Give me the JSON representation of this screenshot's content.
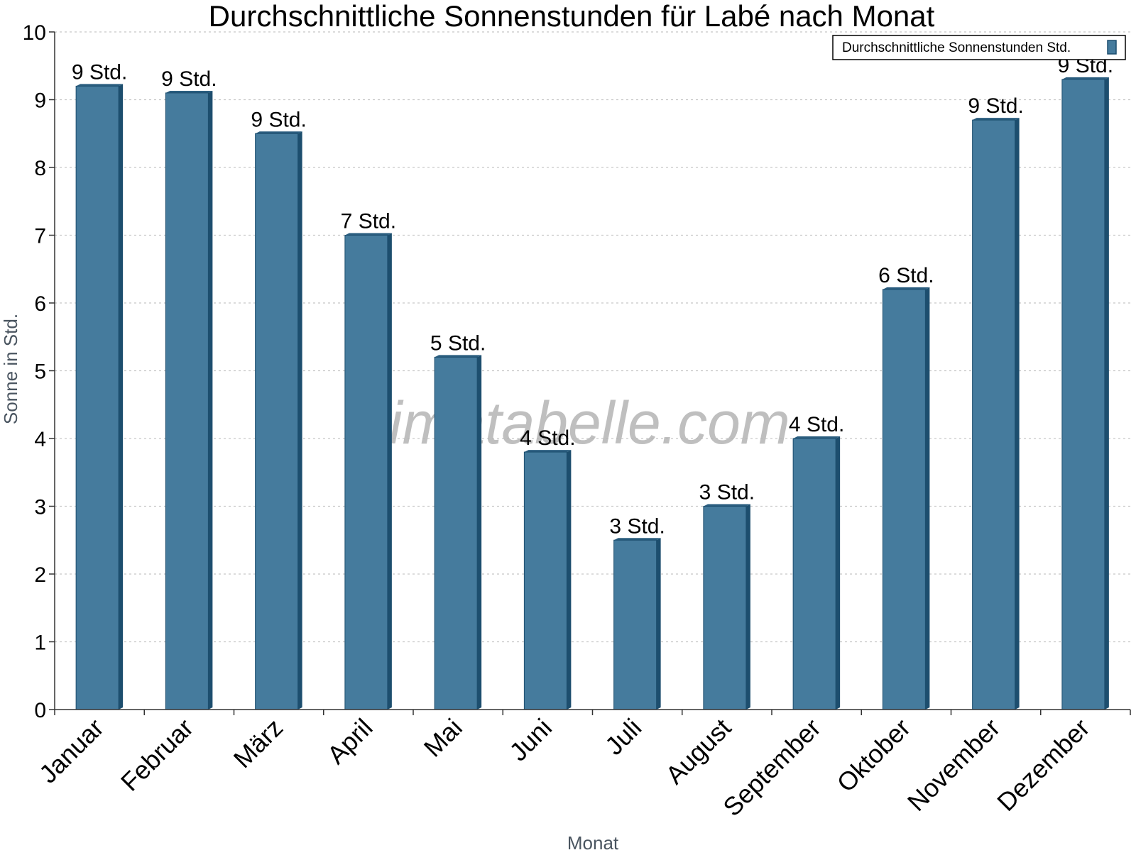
{
  "colors": {
    "bar_front": "#457b9d",
    "bar_side": "#1d4e6e",
    "bar_top": "#2a5d7f",
    "grid": "#c8c8c8",
    "axis": "#333333"
  },
  "watermark": "klimatabelle.com",
  "chart_data": {
    "type": "bar",
    "title": "Durchschnittliche Sonnenstunden für Labé nach Monat",
    "xlabel": "Monat",
    "ylabel": "Sonne in Std.",
    "ylim": [
      0,
      10
    ],
    "yticks": [
      0,
      1,
      2,
      3,
      4,
      5,
      6,
      7,
      8,
      9,
      10
    ],
    "grid": true,
    "legend_position": "top-right",
    "categories": [
      "Januar",
      "Februar",
      "März",
      "April",
      "Mai",
      "Juni",
      "Juli",
      "August",
      "September",
      "Oktober",
      "November",
      "Dezember"
    ],
    "series": [
      {
        "name": "Durchschnittliche Sonnenstunden Std.",
        "values": [
          9.2,
          9.1,
          8.5,
          7.0,
          5.2,
          3.8,
          2.5,
          3.0,
          4.0,
          6.2,
          8.7,
          9.3
        ],
        "data_labels": [
          "9 Std.",
          "9 Std.",
          "9 Std.",
          "7 Std.",
          "5 Std.",
          "4 Std.",
          "3 Std.",
          "3 Std.",
          "4 Std.",
          "6 Std.",
          "9 Std.",
          "9 Std."
        ]
      }
    ]
  }
}
